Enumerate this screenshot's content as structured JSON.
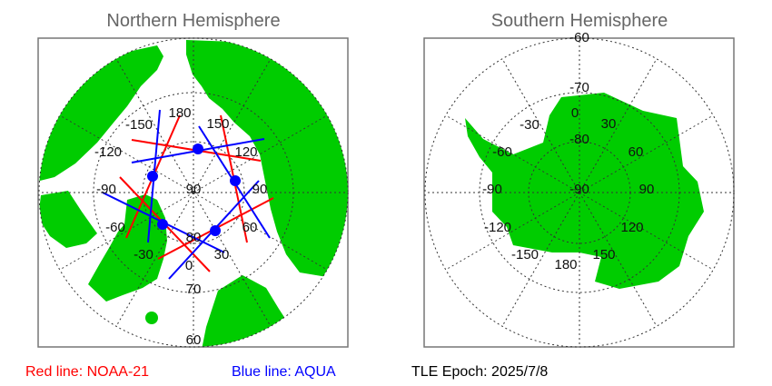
{
  "north": {
    "title": "Northern Hemisphere",
    "lon_labels": {
      "l180": "180",
      "lm150": "-150",
      "l150": "150",
      "lm120": "-120",
      "l120": "120",
      "lm90": "-90",
      "l90": "90",
      "lm60": "-60",
      "l60": "60",
      "lm30": "-30",
      "l30": "30",
      "l0": "0"
    },
    "lat_labels": {
      "l90": "90",
      "l80": "80",
      "l70": "70",
      "l60": "60"
    }
  },
  "south": {
    "title": "Southern Hemisphere",
    "lon_labels": {
      "l0": "0",
      "l30": "30",
      "lm30": "-30",
      "lm60": "-60",
      "l60": "60",
      "lm90": "-90",
      "l90": "90",
      "lm120": "-120",
      "l120": "120",
      "lm150": "-150",
      "l150": "150",
      "l180": "180"
    },
    "lat_labels": {
      "lm90": "-90",
      "lm80": "-80",
      "lm70": "-70",
      "lm60": "-60"
    }
  },
  "legend": {
    "red_line": "Red line: NOAA-21",
    "blue_line": "Blue line: AQUA",
    "tle_epoch": "TLE Epoch: 2025/7/8"
  },
  "colors": {
    "land": "#00cc00",
    "noaa21": "#ff0000",
    "aqua": "#0000ff",
    "grid": "#333333"
  }
}
